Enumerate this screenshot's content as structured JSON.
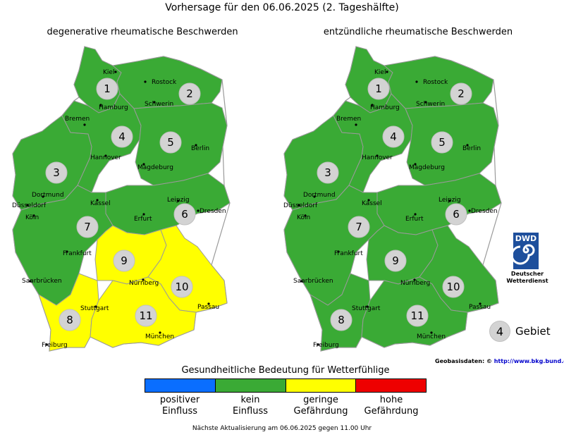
{
  "title": "Vorhersage für den 06.06.2025 (2. Tageshälfte)",
  "maps": [
    {
      "title": "degenerative rheumatische Beschwerden",
      "regions": [
        {
          "number": "1",
          "level": "kein Einfluss"
        },
        {
          "number": "2",
          "level": "kein Einfluss"
        },
        {
          "number": "3",
          "level": "kein Einfluss"
        },
        {
          "number": "4",
          "level": "kein Einfluss"
        },
        {
          "number": "5",
          "level": "kein Einfluss"
        },
        {
          "number": "6",
          "level": "kein Einfluss"
        },
        {
          "number": "7",
          "level": "kein Einfluss"
        },
        {
          "number": "8",
          "level": "geringe Gefährdung"
        },
        {
          "number": "9",
          "level": "geringe Gefährdung"
        },
        {
          "number": "10",
          "level": "geringe Gefährdung"
        },
        {
          "number": "11",
          "level": "geringe Gefährdung"
        }
      ]
    },
    {
      "title": "entzündliche rheumatische Beschwerden",
      "regions": [
        {
          "number": "1",
          "level": "kein Einfluss"
        },
        {
          "number": "2",
          "level": "kein Einfluss"
        },
        {
          "number": "3",
          "level": "kein Einfluss"
        },
        {
          "number": "4",
          "level": "kein Einfluss"
        },
        {
          "number": "5",
          "level": "kein Einfluss"
        },
        {
          "number": "6",
          "level": "kein Einfluss"
        },
        {
          "number": "7",
          "level": "kein Einfluss"
        },
        {
          "number": "8",
          "level": "kein Einfluss"
        },
        {
          "number": "9",
          "level": "kein Einfluss"
        },
        {
          "number": "10",
          "level": "kein Einfluss"
        },
        {
          "number": "11",
          "level": "kein Einfluss"
        }
      ]
    }
  ],
  "cities": [
    "Kiel",
    "Rostock",
    "Hamburg",
    "Schwerin",
    "Bremen",
    "Hannover",
    "Berlin",
    "Magdeburg",
    "Dortmund",
    "Düsseldorf",
    "Köln",
    "Kassel",
    "Leipzig",
    "Dresden",
    "Erfurt",
    "Frankfurt",
    "Nürnberg",
    "Saarbrücken",
    "Stuttgart",
    "Passau",
    "Freiburg",
    "München"
  ],
  "legend": {
    "title": "Gesundheitliche Bedeutung für Wetterfühlige",
    "items": [
      {
        "line1": "positiver",
        "line2": "Einfluss",
        "color": "#0a6eff"
      },
      {
        "line1": "kein",
        "line2": "Einfluss",
        "color": "#3aaa35"
      },
      {
        "line1": "geringe",
        "line2": "Gefährdung",
        "color": "#ffff00"
      },
      {
        "line1": "hohe",
        "line2": "Gefährdung",
        "color": "#ee0000"
      }
    ]
  },
  "region_key": {
    "number": "4",
    "label": "Gebiet"
  },
  "dwd": {
    "logo_text": "DWD",
    "line1": "Deutscher",
    "line2": "Wetterdienst"
  },
  "geobasis": {
    "label": "Geobasisdaten: ©",
    "link": "http://www.bkg.bund.de"
  },
  "footer": "Nächste Aktualisierung am 06.06.2025 gegen 11.00 Uhr"
}
